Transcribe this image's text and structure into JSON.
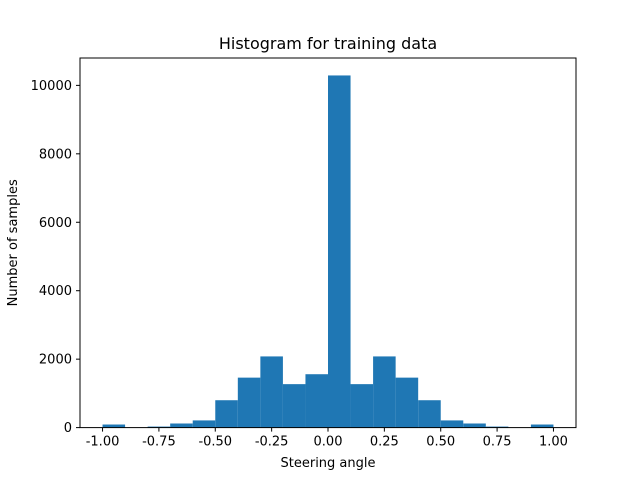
{
  "chart_data": {
    "type": "bar",
    "title": "Histogram for training data",
    "xlabel": "Steering angle",
    "ylabel": "Number of samples",
    "xlim": [
      -1.1,
      1.1
    ],
    "ylim": [
      0,
      10800
    ],
    "xticks": [
      "-1.00",
      "-0.75",
      "-0.50",
      "-0.25",
      "0.00",
      "0.25",
      "0.50",
      "0.75",
      "1.00"
    ],
    "xtick_values": [
      -1.0,
      -0.75,
      -0.5,
      -0.25,
      0.0,
      0.25,
      0.5,
      0.75,
      1.0
    ],
    "yticks": [
      "0",
      "2000",
      "4000",
      "6000",
      "8000",
      "10000"
    ],
    "ytick_values": [
      0,
      2000,
      4000,
      6000,
      8000,
      10000
    ],
    "bin_edges": [
      -1.0,
      -0.9,
      -0.8,
      -0.7,
      -0.6,
      -0.5,
      -0.4,
      -0.3,
      -0.2,
      -0.1,
      0.0,
      0.1,
      0.2,
      0.3,
      0.4,
      0.5,
      0.6,
      0.7,
      0.8,
      0.9,
      1.0
    ],
    "values": [
      90,
      0,
      30,
      120,
      210,
      800,
      1460,
      2080,
      1270,
      1560,
      10290,
      1270,
      2080,
      1460,
      800,
      210,
      120,
      30,
      0,
      90
    ],
    "grid": false,
    "color": "#1f77b4"
  }
}
